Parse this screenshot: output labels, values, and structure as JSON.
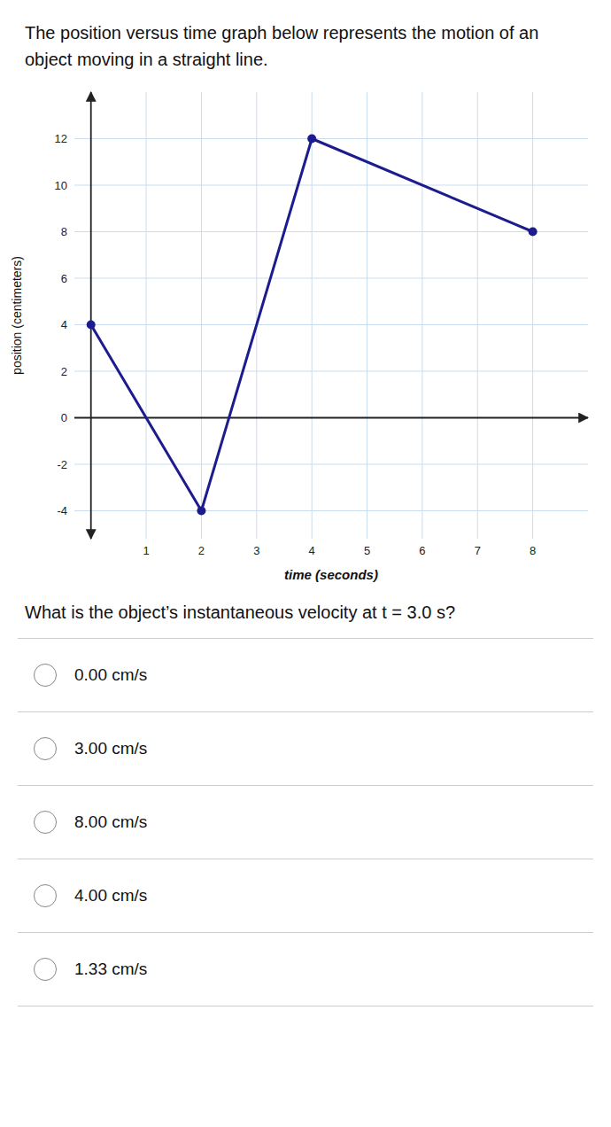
{
  "chart_data": {
    "type": "line",
    "title": "The position versus time graph below represents the motion of an object moving in a straight line.",
    "subtitle": "What is the object’s instantaneous velocity at t = 3.0 s?",
    "annotations": [
      "0.00 cm/s",
      "3.00 cm/s",
      "8.00 cm/s",
      "4.00 cm/s",
      "1.33 cm/s"
    ],
    "x_label": "time (seconds)",
    "y_label": "position (centimeters)",
    "x": [
      0,
      2,
      4,
      8
    ],
    "values": [
      4,
      -4,
      12,
      8
    ],
    "color": "#1c1c8f",
    "marker": "circle",
    "xlim": [
      -0.3,
      9.0
    ],
    "ylim": [
      -5.2,
      14.0
    ],
    "xticks": [
      1,
      2,
      3,
      4,
      5,
      6,
      7,
      8
    ],
    "yticks": [
      -4,
      -2,
      0,
      2,
      4,
      6,
      8,
      10,
      12
    ],
    "grid": true
  }
}
